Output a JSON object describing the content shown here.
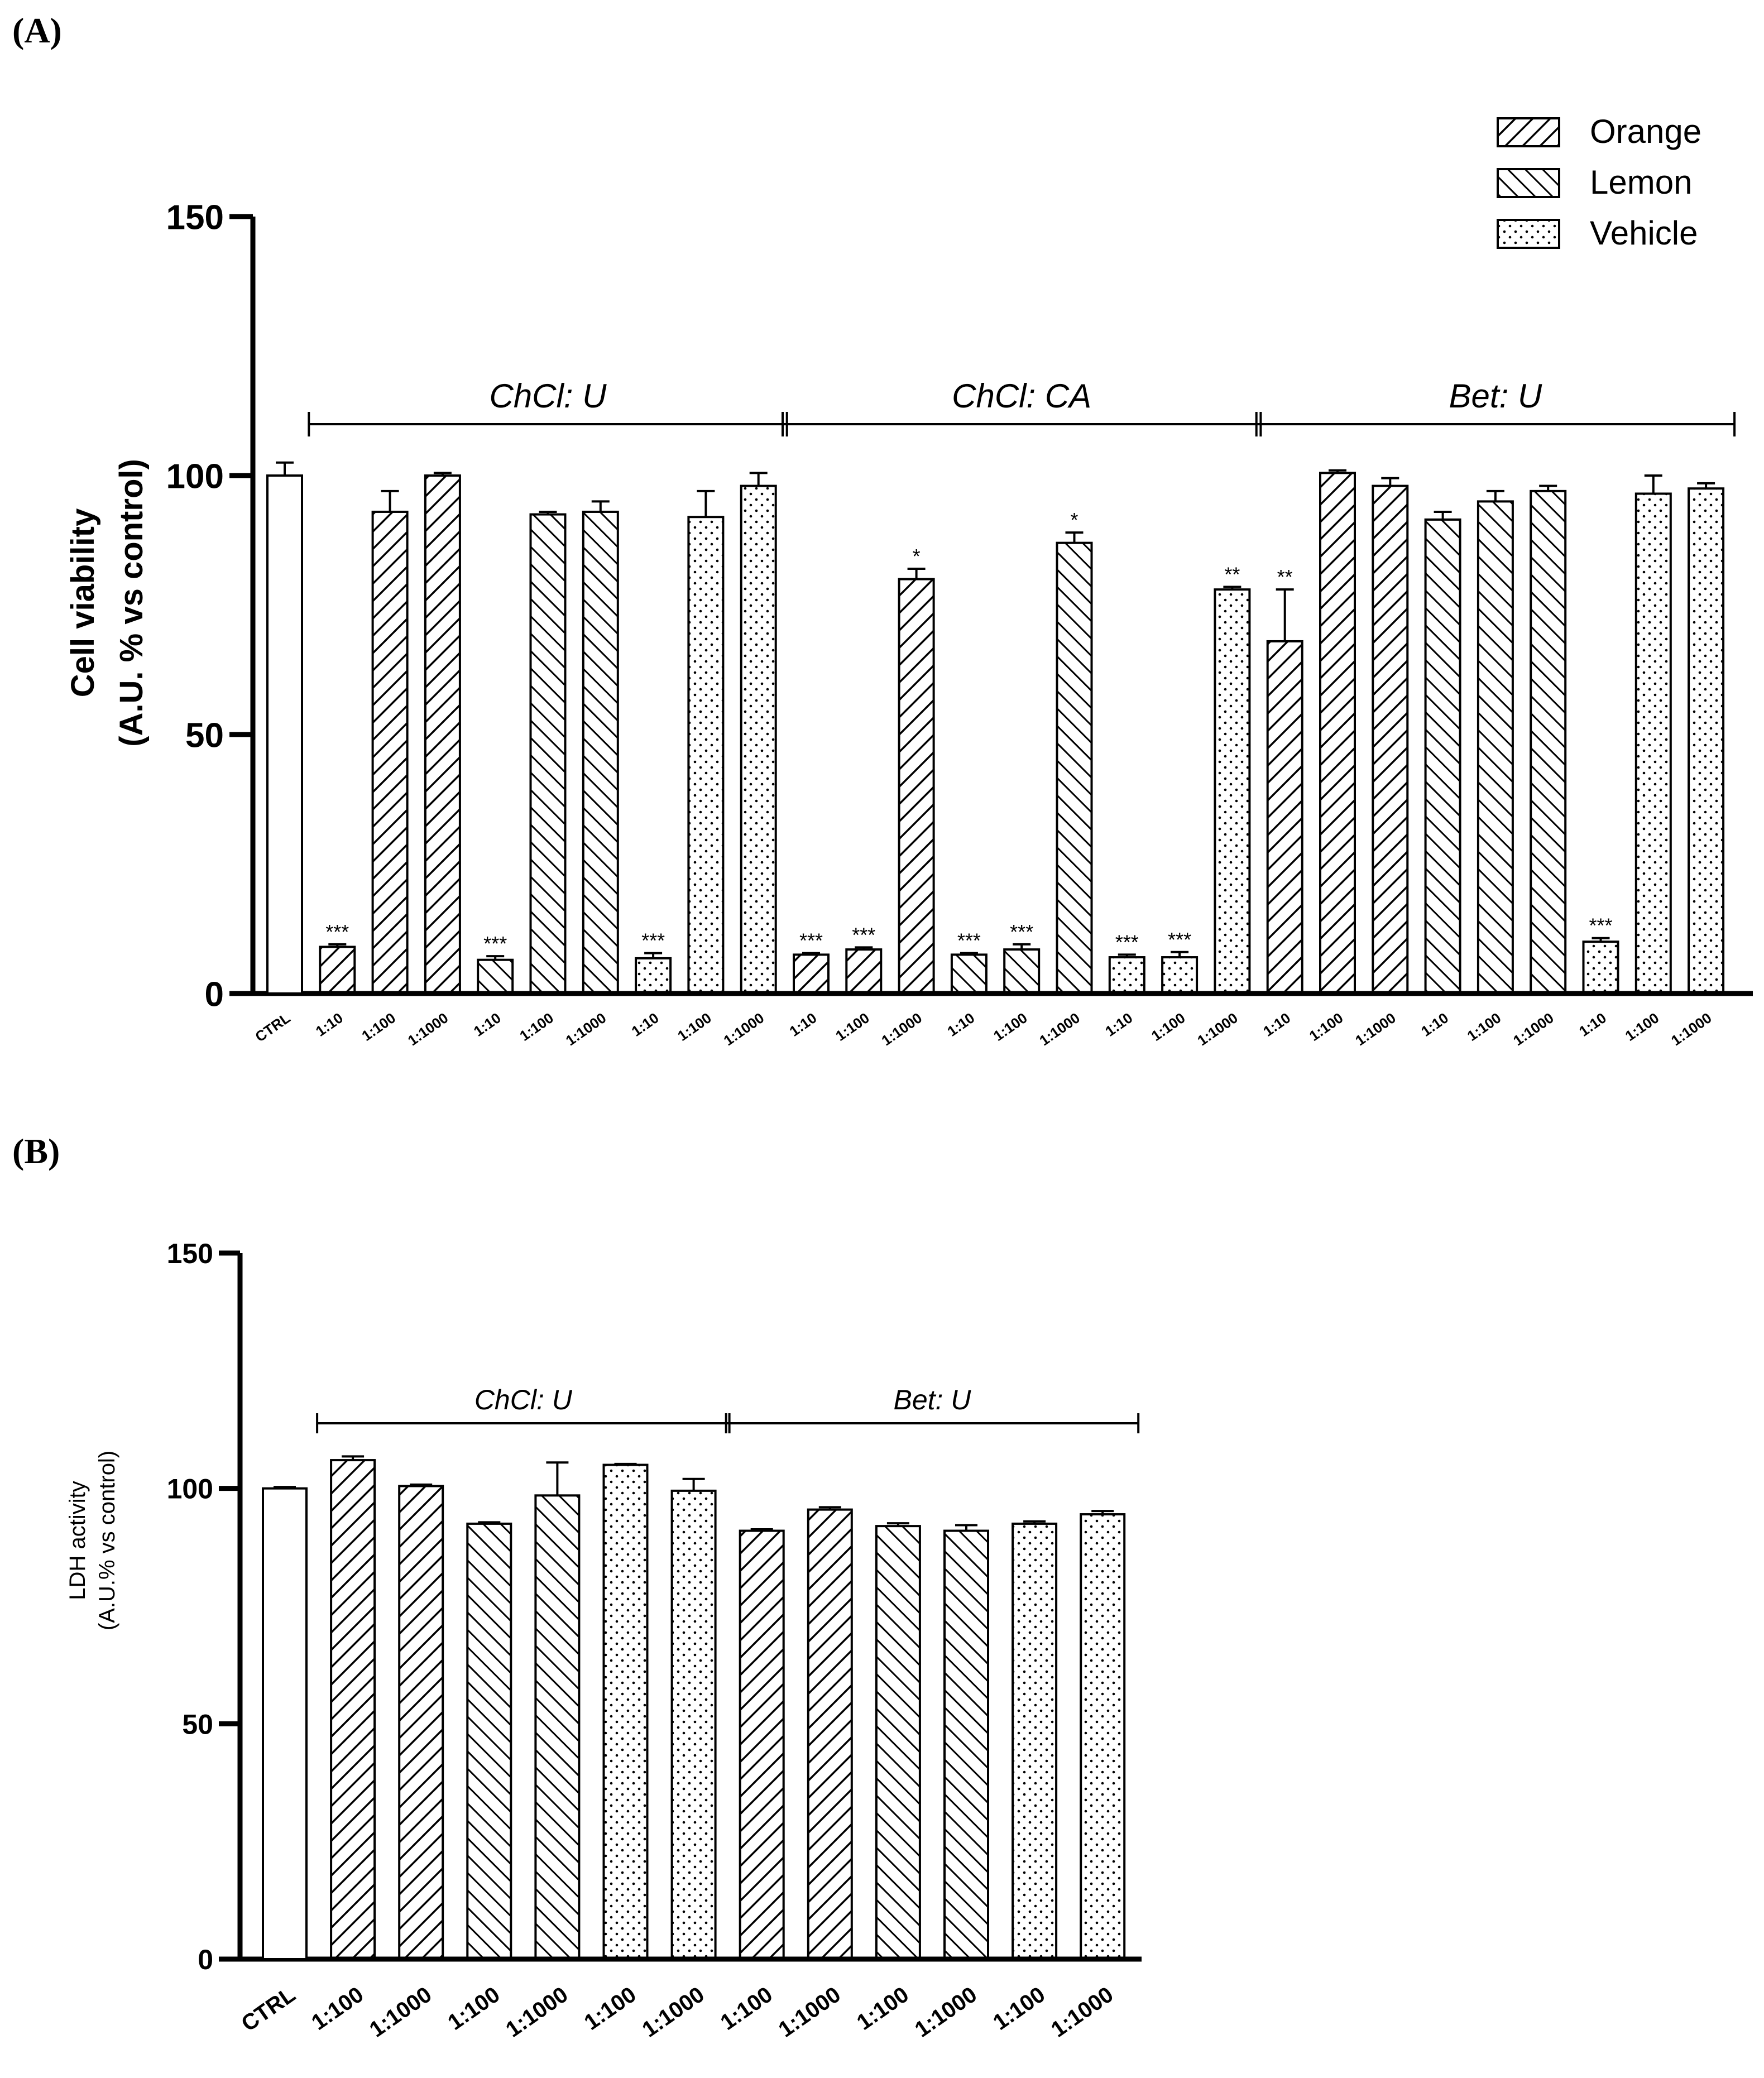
{
  "panels": {
    "a": {
      "label": "(A)"
    },
    "b": {
      "label": "(B)"
    }
  },
  "legend": [
    {
      "name": "Orange",
      "pattern": "diag-down"
    },
    {
      "name": "Lemon",
      "pattern": "diag-up"
    },
    {
      "name": "Vehicle",
      "pattern": "dots"
    }
  ],
  "chart_data": [
    {
      "type": "bar",
      "panel": "A",
      "ylabel_line1": "Cell viability",
      "ylabel_line2": "(A.U. % vs control)",
      "ylim": [
        0,
        150
      ],
      "yticks": [
        0,
        50,
        100,
        150
      ],
      "groups": [
        {
          "label": "ChCl: U",
          "from": 1,
          "to": 9
        },
        {
          "label": "ChCl: CA",
          "from": 10,
          "to": 18
        },
        {
          "label": "Bet: U",
          "from": 19,
          "to": 27
        }
      ],
      "bars": [
        {
          "category": "CTRL",
          "series": "Control",
          "value": 100,
          "error": 2.5,
          "sig": ""
        },
        {
          "category": "1:10",
          "series": "Orange",
          "value": 9,
          "error": 0.5,
          "sig": "***"
        },
        {
          "category": "1:100",
          "series": "Orange",
          "value": 93,
          "error": 4,
          "sig": ""
        },
        {
          "category": "1:1000",
          "series": "Orange",
          "value": 100,
          "error": 0.5,
          "sig": ""
        },
        {
          "category": "1:10",
          "series": "Lemon",
          "value": 6.5,
          "error": 0.7,
          "sig": "***"
        },
        {
          "category": "1:100",
          "series": "Lemon",
          "value": 92.5,
          "error": 0.5,
          "sig": ""
        },
        {
          "category": "1:1000",
          "series": "Lemon",
          "value": 93,
          "error": 2,
          "sig": ""
        },
        {
          "category": "1:10",
          "series": "Vehicle",
          "value": 6.8,
          "error": 1,
          "sig": "***"
        },
        {
          "category": "1:100",
          "series": "Vehicle",
          "value": 92,
          "error": 5,
          "sig": ""
        },
        {
          "category": "1:1000",
          "series": "Vehicle",
          "value": 98,
          "error": 2.5,
          "sig": ""
        },
        {
          "category": "1:10",
          "series": "Orange",
          "value": 7.5,
          "error": 0.3,
          "sig": "***"
        },
        {
          "category": "1:100",
          "series": "Orange",
          "value": 8.5,
          "error": 0.4,
          "sig": "***"
        },
        {
          "category": "1:1000",
          "series": "Orange",
          "value": 80,
          "error": 2,
          "sig": "*"
        },
        {
          "category": "1:10",
          "series": "Lemon",
          "value": 7.5,
          "error": 0.3,
          "sig": "***"
        },
        {
          "category": "1:100",
          "series": "Lemon",
          "value": 8.5,
          "error": 1,
          "sig": "***"
        },
        {
          "category": "1:1000",
          "series": "Lemon",
          "value": 87,
          "error": 2,
          "sig": "*"
        },
        {
          "category": "1:10",
          "series": "Vehicle",
          "value": 7,
          "error": 0.5,
          "sig": "***"
        },
        {
          "category": "1:100",
          "series": "Vehicle",
          "value": 7,
          "error": 1,
          "sig": "***"
        },
        {
          "category": "1:1000",
          "series": "Vehicle",
          "value": 78,
          "error": 0.5,
          "sig": "**"
        },
        {
          "category": "1:10",
          "series": "Orange",
          "value": 68,
          "error": 10,
          "sig": "**"
        },
        {
          "category": "1:100",
          "series": "Orange",
          "value": 100.5,
          "error": 0.5,
          "sig": ""
        },
        {
          "category": "1:1000",
          "series": "Orange",
          "value": 98,
          "error": 1.5,
          "sig": ""
        },
        {
          "category": "1:10",
          "series": "Lemon",
          "value": 91.5,
          "error": 1.5,
          "sig": ""
        },
        {
          "category": "1:100",
          "series": "Lemon",
          "value": 95,
          "error": 2,
          "sig": ""
        },
        {
          "category": "1:1000",
          "series": "Lemon",
          "value": 97,
          "error": 1,
          "sig": ""
        },
        {
          "category": "1:10",
          "series": "Vehicle",
          "value": 10,
          "error": 0.7,
          "sig": "***"
        },
        {
          "category": "1:100",
          "series": "Vehicle",
          "value": 96.5,
          "error": 3.5,
          "sig": ""
        },
        {
          "category": "1:1000",
          "series": "Vehicle",
          "value": 97.5,
          "error": 1,
          "sig": ""
        }
      ]
    },
    {
      "type": "bar",
      "panel": "B",
      "ylabel_line1": "LDH activity",
      "ylabel_line2": "(A.U.% vs control)",
      "ylim": [
        0,
        150
      ],
      "yticks": [
        0,
        50,
        100,
        150
      ],
      "groups": [
        {
          "label": "ChCl: U",
          "from": 1,
          "to": 6
        },
        {
          "label": "Bet: U",
          "from": 7,
          "to": 12
        }
      ],
      "bars": [
        {
          "category": "CTRL",
          "series": "Control",
          "value": 100,
          "error": 0.3
        },
        {
          "category": "1:100",
          "series": "Orange",
          "value": 106,
          "error": 0.8
        },
        {
          "category": "1:1000",
          "series": "Orange",
          "value": 100.5,
          "error": 0.3
        },
        {
          "category": "1:100",
          "series": "Lemon",
          "value": 92.5,
          "error": 0.3
        },
        {
          "category": "1:1000",
          "series": "Lemon",
          "value": 98.5,
          "error": 7
        },
        {
          "category": "1:100",
          "series": "Vehicle",
          "value": 105,
          "error": 0.2
        },
        {
          "category": "1:1000",
          "series": "Vehicle",
          "value": 99.5,
          "error": 2.5
        },
        {
          "category": "1:100",
          "series": "Orange",
          "value": 91,
          "error": 0.3
        },
        {
          "category": "1:1000",
          "series": "Orange",
          "value": 95.5,
          "error": 0.5
        },
        {
          "category": "1:100",
          "series": "Lemon",
          "value": 92,
          "error": 0.6
        },
        {
          "category": "1:1000",
          "series": "Lemon",
          "value": 91,
          "error": 1.2
        },
        {
          "category": "1:100",
          "series": "Vehicle",
          "value": 92.5,
          "error": 0.5
        },
        {
          "category": "1:1000",
          "series": "Vehicle",
          "value": 94.5,
          "error": 0.7
        }
      ]
    }
  ]
}
